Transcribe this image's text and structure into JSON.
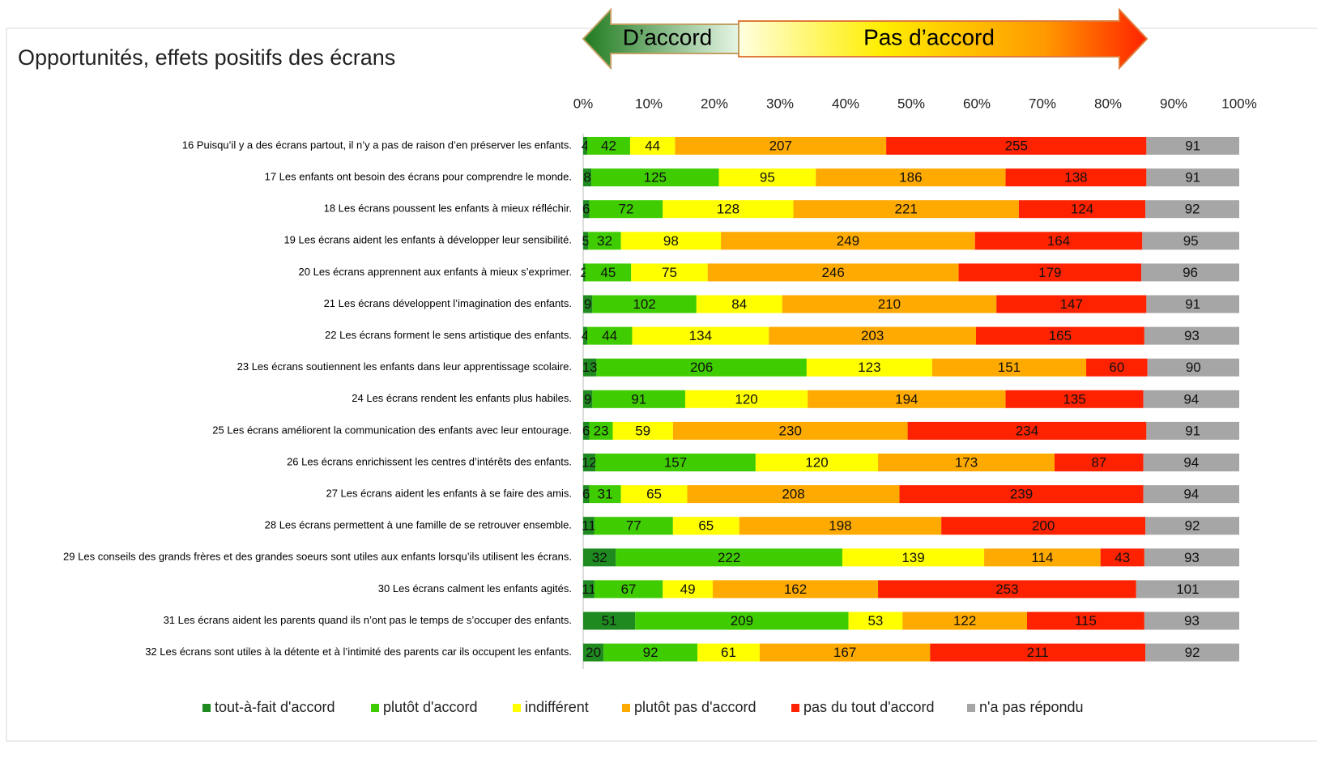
{
  "chart_data": {
    "type": "stacked_bar_100",
    "title": "Opportunités, effets positifs des écrans",
    "banner": {
      "left": "D’accord",
      "right": "Pas d’accord"
    },
    "categories": [
      "16 Puisqu’il y a des écrans partout, il n’y a pas de raison d’en préserver  les enfants.",
      "17 Les enfants ont besoin des écrans pour comprendre le monde.",
      "18 Les écrans poussent les enfants à mieux réfléchir.",
      "19 Les écrans aident les enfants à développer leur sensibilité.",
      "20 Les écrans apprennent  aux enfants  à mieux  s’exprimer.",
      "21 Les écrans développent l’imagination des enfants.",
      "22 Les écrans forment le sens artistique des enfants.",
      "23 Les écrans soutiennent les enfants dans leur apprentissage scolaire.",
      "24 Les écrans rendent les enfants plus habiles.",
      "25 Les écrans améliorent la communication des enfants avec leur entourage.",
      "26 Les écrans enrichissent  les  centres  d’intérêts  des enfants.",
      "27 Les écrans aident les enfants à se faire des amis.",
      "28 Les écrans permettent à une famille de se retrouver ensemble.",
      "29 Les conseils des grands frères et des grandes soeurs sont utiles aux enfants lorsqu’ils utilisent les écrans.",
      "30 Les écrans calment les enfants agités.",
      "31 Les écrans aident les parents quand ils n’ont pas le temps de s’occuper des enfants.",
      "32 Les écrans sont utiles à la détente  et à l’intimité  des parents  car  ils occupent les enfants."
    ],
    "series": [
      {
        "name": "tout-à-fait d'accord",
        "color": "#1f8a1f",
        "values": [
          4,
          8,
          6,
          5,
          2,
          9,
          4,
          13,
          9,
          6,
          12,
          6,
          11,
          32,
          11,
          51,
          20
        ]
      },
      {
        "name": "plutôt d'accord",
        "color": "#3fcc00",
        "values": [
          42,
          125,
          72,
          32,
          45,
          102,
          44,
          206,
          91,
          23,
          157,
          31,
          77,
          222,
          67,
          209,
          92
        ]
      },
      {
        "name": "indifférent",
        "color": "#ffff00",
        "values": [
          44,
          95,
          128,
          98,
          75,
          84,
          134,
          123,
          120,
          59,
          120,
          65,
          65,
          139,
          49,
          53,
          61
        ]
      },
      {
        "name": "plutôt pas d'accord",
        "color": "#ffaa00",
        "values": [
          207,
          186,
          221,
          249,
          246,
          210,
          203,
          151,
          194,
          230,
          173,
          208,
          198,
          114,
          162,
          122,
          167
        ]
      },
      {
        "name": "pas du tout d'accord",
        "color": "#ff2200",
        "values": [
          255,
          138,
          124,
          164,
          179,
          147,
          165,
          60,
          135,
          234,
          87,
          239,
          200,
          43,
          253,
          115,
          211
        ]
      },
      {
        "name": "n'a pas répondu",
        "color": "#a6a6a6",
        "values": [
          91,
          91,
          92,
          95,
          96,
          91,
          93,
          90,
          94,
          91,
          94,
          94,
          92,
          93,
          101,
          93,
          92
        ]
      }
    ],
    "xlim": [
      0,
      100
    ],
    "xticks": [
      {
        "value": 0,
        "label": "0%"
      },
      {
        "value": 10,
        "label": "10%"
      },
      {
        "value": 20,
        "label": "20%"
      },
      {
        "value": 30,
        "label": "30%"
      },
      {
        "value": 40,
        "label": "40%"
      },
      {
        "value": 50,
        "label": "50%"
      },
      {
        "value": 60,
        "label": "60%"
      },
      {
        "value": 70,
        "label": "70%"
      },
      {
        "value": 80,
        "label": "80%"
      },
      {
        "value": 90,
        "label": "90%"
      },
      {
        "value": 100,
        "label": "100%"
      }
    ]
  }
}
